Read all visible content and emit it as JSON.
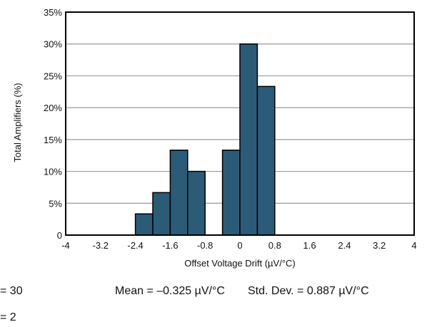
{
  "chart_data": {
    "type": "bar",
    "title": "",
    "xlabel": "Offset Voltage Drift (µV/°C)",
    "ylabel": "Total Amplifiers (%)",
    "xlim": [
      -4,
      4
    ],
    "ylim": [
      0,
      35
    ],
    "x_ticks": [
      "-4",
      "-3.2",
      "-2.4",
      "-1.6",
      "-0.8",
      "0",
      "0.8",
      "1.6",
      "2.4",
      "3.2",
      "4"
    ],
    "y_ticks": [
      "0",
      "5%",
      "10%",
      "15%",
      "20%",
      "25%",
      "30%",
      "35%"
    ],
    "bar_color": "#2c5b78",
    "bars": [
      {
        "x0": -2.4,
        "x1": -2.0,
        "value": 3.33
      },
      {
        "x0": -2.0,
        "x1": -1.6,
        "value": 6.67
      },
      {
        "x0": -1.6,
        "x1": -1.2,
        "value": 13.33
      },
      {
        "x0": -1.2,
        "x1": -0.8,
        "value": 10.0
      },
      {
        "x0": -0.4,
        "x1": 0.0,
        "value": 13.33
      },
      {
        "x0": 0.0,
        "x1": 0.4,
        "value": 30.0
      },
      {
        "x0": 0.4,
        "x1": 0.8,
        "value": 23.33
      }
    ],
    "grid": true
  },
  "stats": {
    "n": "= 30",
    "mean": "Mean = –0.325 µV/°C",
    "std_dev": "Std. Dev. = 0.887 µV/°C",
    "bins": "= 2"
  }
}
